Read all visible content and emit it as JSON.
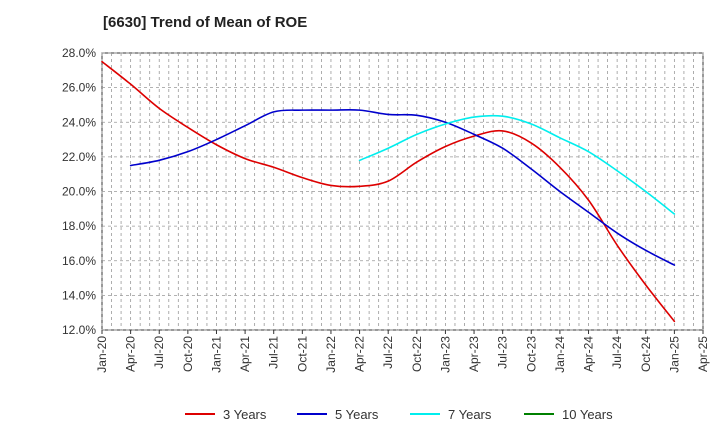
{
  "chart_data": {
    "type": "line",
    "title": "[6630]  Trend of Mean of ROE",
    "xlabel": "",
    "ylabel": "",
    "ylim": [
      12.0,
      28.0
    ],
    "yticks": [
      "12.0%",
      "14.0%",
      "16.0%",
      "18.0%",
      "20.0%",
      "22.0%",
      "24.0%",
      "26.0%",
      "28.0%"
    ],
    "ytick_values": [
      12,
      14,
      16,
      18,
      20,
      22,
      24,
      26,
      28
    ],
    "xticks": [
      "Jan-20",
      "Apr-20",
      "Jul-20",
      "Oct-20",
      "Jan-21",
      "Apr-21",
      "Jul-21",
      "Oct-21",
      "Jan-22",
      "Apr-22",
      "Jul-22",
      "Oct-22",
      "Jan-23",
      "Apr-23",
      "Jul-23",
      "Oct-23",
      "Jan-24",
      "Apr-24",
      "Jul-24",
      "Oct-24",
      "Jan-25",
      "Apr-25"
    ],
    "grid": true,
    "legend_position": "bottom",
    "series": [
      {
        "name": "3 Years",
        "color": "#dd0000",
        "points": [
          [
            "Jan-20",
            27.5
          ],
          [
            "Apr-20",
            26.2
          ],
          [
            "Jul-20",
            24.8
          ],
          [
            "Oct-20",
            23.7
          ],
          [
            "Jan-21",
            22.7
          ],
          [
            "Apr-21",
            21.9
          ],
          [
            "Jul-21",
            21.4
          ],
          [
            "Oct-21",
            20.8
          ],
          [
            "Jan-22",
            20.35
          ],
          [
            "Apr-22",
            20.3
          ],
          [
            "Jul-22",
            20.6
          ],
          [
            "Oct-22",
            21.7
          ],
          [
            "Jan-23",
            22.6
          ],
          [
            "Apr-23",
            23.2
          ],
          [
            "Jul-23",
            23.5
          ],
          [
            "Oct-23",
            22.8
          ],
          [
            "Jan-24",
            21.4
          ],
          [
            "Apr-24",
            19.5
          ],
          [
            "Jul-24",
            16.9
          ],
          [
            "Oct-24",
            14.6
          ],
          [
            "Jan-25",
            12.5
          ]
        ]
      },
      {
        "name": "5 Years",
        "color": "#0000cc",
        "points": [
          [
            "Apr-20",
            21.5
          ],
          [
            "Jul-20",
            21.8
          ],
          [
            "Oct-20",
            22.3
          ],
          [
            "Jan-21",
            23.0
          ],
          [
            "Apr-21",
            23.8
          ],
          [
            "Jul-21",
            24.6
          ],
          [
            "Oct-21",
            24.7
          ],
          [
            "Jan-22",
            24.7
          ],
          [
            "Apr-22",
            24.7
          ],
          [
            "Jul-22",
            24.45
          ],
          [
            "Oct-22",
            24.4
          ],
          [
            "Jan-23",
            24.0
          ],
          [
            "Apr-23",
            23.3
          ],
          [
            "Jul-23",
            22.5
          ],
          [
            "Oct-23",
            21.3
          ],
          [
            "Jan-24",
            20.0
          ],
          [
            "Apr-24",
            18.8
          ],
          [
            "Jul-24",
            17.6
          ],
          [
            "Oct-24",
            16.6
          ],
          [
            "Jan-25",
            15.75
          ]
        ]
      },
      {
        "name": "7 Years",
        "color": "#00eeee",
        "points": [
          [
            "Apr-22",
            21.8
          ],
          [
            "Jul-22",
            22.5
          ],
          [
            "Oct-22",
            23.3
          ],
          [
            "Jan-23",
            23.9
          ],
          [
            "Apr-23",
            24.3
          ],
          [
            "Jul-23",
            24.35
          ],
          [
            "Oct-23",
            23.9
          ],
          [
            "Jan-24",
            23.1
          ],
          [
            "Apr-24",
            22.3
          ],
          [
            "Jul-24",
            21.2
          ],
          [
            "Oct-24",
            20.0
          ],
          [
            "Jan-25",
            18.7
          ]
        ]
      },
      {
        "name": "10 Years",
        "color": "#008000",
        "points": []
      }
    ]
  }
}
